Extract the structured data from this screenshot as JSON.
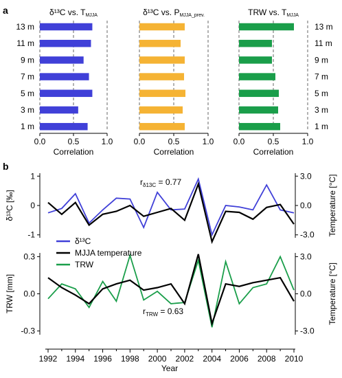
{
  "panel_labels": {
    "a": "a",
    "b": "b"
  },
  "colors": {
    "d13c": "#4040d8",
    "precip": "#f5b334",
    "trw": "#1a9e4a",
    "temp": "#000000"
  },
  "chart_data": [
    {
      "type": "bar",
      "orientation": "horizontal",
      "title_main": "δ¹³C vs. T",
      "title_sub": "MJJA",
      "categories": [
        "13 m",
        "11 m",
        "9 m",
        "7 m",
        "5 m",
        "3 m",
        "1 m"
      ],
      "values": [
        0.78,
        0.76,
        0.65,
        0.73,
        0.78,
        0.57,
        0.71
      ],
      "xlim": [
        0,
        1.0
      ],
      "xticks": [
        "0.0",
        "0.5",
        "1.0"
      ],
      "xlabel": "Correlation",
      "color": "#4040d8"
    },
    {
      "type": "bar",
      "orientation": "horizontal",
      "title_main": "δ¹³C vs. P",
      "title_sub": "MJJA_prev.",
      "categories": [
        "13 m",
        "11 m",
        "9 m",
        "7 m",
        "5 m",
        "3 m",
        "1 m"
      ],
      "values": [
        0.66,
        0.6,
        0.66,
        0.65,
        0.67,
        0.63,
        0.66
      ],
      "xlim": [
        0,
        1.0
      ],
      "xticks": [
        "0.0",
        "0.5",
        "1.0"
      ],
      "xlabel": "Correlation",
      "color": "#f5b334"
    },
    {
      "type": "bar",
      "orientation": "horizontal",
      "title_main": "TRW vs. T",
      "title_sub": "MJJA",
      "categories": [
        "13 m",
        "11 m",
        "9 m",
        "7 m",
        "5 m",
        "3 m",
        "1 m"
      ],
      "values": [
        0.8,
        0.48,
        0.48,
        0.53,
        0.58,
        0.57,
        0.6
      ],
      "xlim": [
        0,
        1.0
      ],
      "xticks": [
        "0.0",
        "0.5",
        "1.0"
      ],
      "xlabel": "Correlation",
      "color": "#1a9e4a"
    },
    {
      "type": "line",
      "x": [
        1992,
        1993,
        1994,
        1995,
        1996,
        1997,
        1998,
        1999,
        2000,
        2001,
        2002,
        2003,
        2004,
        2005,
        2006,
        2007,
        2008,
        2009,
        2010
      ],
      "left_axis": {
        "label": "δ¹³C [‰]",
        "ylim": [
          -1.1,
          1.1
        ],
        "ticks": [
          "1",
          "0",
          "-1"
        ],
        "tick_values": [
          1,
          0,
          -1
        ]
      },
      "right_axis": {
        "label": "Temperature [°C]",
        "ylim": [
          -3.3,
          3.3
        ],
        "ticks": [
          "3.0",
          "0.0",
          "-3.0"
        ],
        "tick_values": [
          3,
          0,
          -3
        ]
      },
      "series": [
        {
          "name": "δ¹³C",
          "axis": "left",
          "color": "#4040d8",
          "values": [
            -0.25,
            -0.1,
            0.4,
            -0.6,
            -0.15,
            0.25,
            0.22,
            -0.75,
            0.45,
            -0.15,
            -0.12,
            0.9,
            -1.0,
            0.0,
            -0.05,
            -0.15,
            0.7,
            -0.15,
            -0.25
          ]
        },
        {
          "name": "MJJA temperature",
          "axis": "right",
          "color": "#000000",
          "values": [
            0.3,
            -0.9,
            0.3,
            -2.0,
            -0.9,
            -0.6,
            0.0,
            -1.1,
            -0.7,
            -0.3,
            -1.5,
            2.2,
            -3.7,
            -0.6,
            -0.7,
            -1.4,
            -0.2,
            0.1,
            -1.9
          ]
        }
      ],
      "annotation": {
        "text": "r",
        "sub": "δ13C",
        "rest": " = 0.77"
      }
    },
    {
      "type": "line",
      "x": [
        1992,
        1993,
        1994,
        1995,
        1996,
        1997,
        1998,
        1999,
        2000,
        2001,
        2002,
        2003,
        2004,
        2005,
        2006,
        2007,
        2008,
        2009,
        2010
      ],
      "xlabel": "Year",
      "xticks": [
        1992,
        1994,
        1996,
        1998,
        2000,
        2002,
        2004,
        2006,
        2008,
        2010
      ],
      "left_axis": {
        "label": "TRW [mm]",
        "ylim": [
          -0.33,
          0.33
        ],
        "ticks": [
          "0.3",
          "0.0",
          "-0.3"
        ],
        "tick_values": [
          0.3,
          0,
          -0.3
        ]
      },
      "right_axis": {
        "label": "Temperature [°C]",
        "ylim": [
          -3.3,
          3.3
        ],
        "ticks": [
          "3.0",
          "0.0",
          "-3.0"
        ],
        "tick_values": [
          3,
          0,
          -3
        ]
      },
      "series": [
        {
          "name": "TRW",
          "axis": "left",
          "color": "#1a9e4a",
          "values": [
            -0.04,
            0.08,
            0.04,
            -0.11,
            0.1,
            -0.06,
            0.31,
            -0.05,
            0.02,
            -0.08,
            -0.07,
            0.27,
            -0.27,
            0.26,
            -0.08,
            0.05,
            0.08,
            0.3,
            0.03
          ]
        },
        {
          "name": "MJJA temperature",
          "axis": "right",
          "color": "#000000",
          "values": [
            1.3,
            0.5,
            -0.1,
            -0.8,
            0.4,
            0.8,
            1.1,
            0.3,
            0.5,
            0.8,
            -0.8,
            3.2,
            -2.4,
            0.8,
            0.6,
            0.9,
            1.1,
            1.3,
            -0.6
          ]
        }
      ],
      "annotation": {
        "text": "r",
        "sub": "TRW",
        "rest": " = 0.63"
      }
    }
  ],
  "legend": {
    "items": [
      {
        "label": "δ¹³C",
        "color": "#4040d8"
      },
      {
        "label": "MJJA temperature",
        "color": "#000000"
      },
      {
        "label": "TRW",
        "color": "#1a9e4a"
      }
    ]
  }
}
